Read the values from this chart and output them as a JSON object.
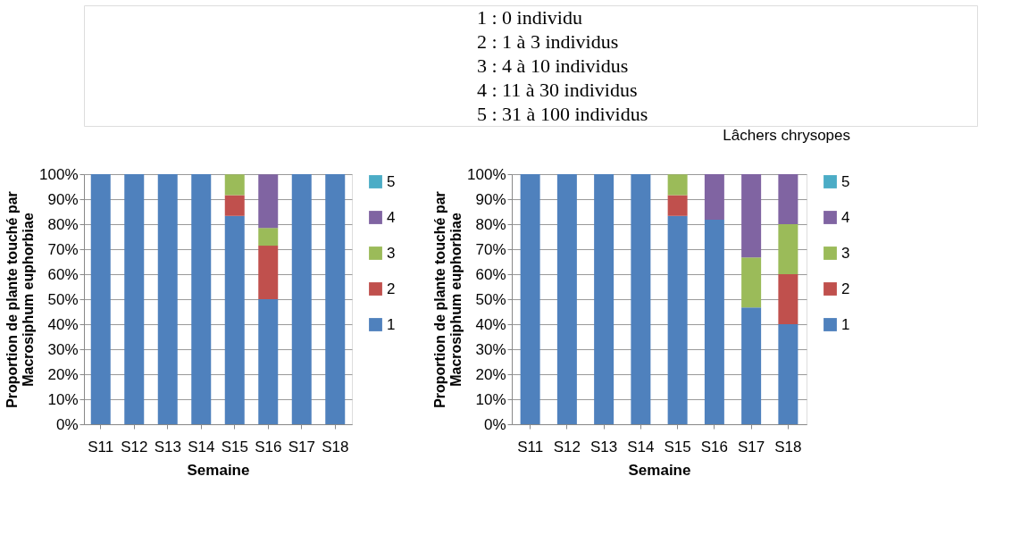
{
  "chart_data": [
    {
      "type": "other",
      "annotations": [
        "1 : 0 individu",
        "2 : 1 à 3 individus",
        "3 : 4 à 10 individus",
        "4 : 11 à 30 individus",
        "5 : 31 à 100 individus"
      ]
    },
    {
      "type": "bar",
      "stacked": true,
      "xlabel": "Semaine",
      "ylabel": "Proportion de plante touché par\nMacrosiphum euphorbiae",
      "categories": [
        "S11",
        "S12",
        "S13",
        "S14",
        "S15",
        "S16",
        "S17",
        "S18"
      ],
      "series": [
        {
          "name": "1",
          "color": "#4f81bd",
          "values": [
            100,
            100,
            100,
            100,
            83.3,
            50,
            100,
            100
          ]
        },
        {
          "name": "2",
          "color": "#c0504d",
          "values": [
            0,
            0,
            0,
            0,
            8.3,
            21.4,
            0,
            0
          ]
        },
        {
          "name": "3",
          "color": "#9bbb59",
          "values": [
            0,
            0,
            0,
            0,
            8.3,
            7.1,
            0,
            0
          ]
        },
        {
          "name": "4",
          "color": "#8064a2",
          "values": [
            0,
            0,
            0,
            0,
            0,
            21.4,
            0,
            0
          ]
        },
        {
          "name": "5",
          "color": "#4bacc6",
          "values": [
            0,
            0,
            0,
            0,
            0,
            0,
            0,
            0
          ]
        }
      ],
      "ylim": [
        0,
        100
      ],
      "yticks": [
        {
          "value": 0,
          "label": "0%"
        },
        {
          "value": 10,
          "label": "10%"
        },
        {
          "value": 20,
          "label": "20%"
        },
        {
          "value": 30,
          "label": "30%"
        },
        {
          "value": 40,
          "label": "40%"
        },
        {
          "value": 50,
          "label": "50%"
        },
        {
          "value": 60,
          "label": "60%"
        },
        {
          "value": 70,
          "label": "70%"
        },
        {
          "value": 80,
          "label": "80%"
        },
        {
          "value": 90,
          "label": "90%"
        },
        {
          "value": 100,
          "label": "100%"
        }
      ],
      "grid": "y",
      "legend": "right"
    },
    {
      "type": "bar",
      "stacked": true,
      "xlabel": "Semaine",
      "ylabel": "Proportion de plante touché par\nMacrosiphum euphorbiae",
      "annotations": [
        "Lâchers chrysopes"
      ],
      "categories": [
        "S11",
        "S12",
        "S13",
        "S14",
        "S15",
        "S16",
        "S17",
        "S18"
      ],
      "series": [
        {
          "name": "1",
          "color": "#4f81bd",
          "values": [
            100,
            100,
            100,
            100,
            83.3,
            81.8,
            46.7,
            40
          ]
        },
        {
          "name": "2",
          "color": "#c0504d",
          "values": [
            0,
            0,
            0,
            0,
            8.3,
            0,
            0,
            20
          ]
        },
        {
          "name": "3",
          "color": "#9bbb59",
          "values": [
            0,
            0,
            0,
            0,
            8.3,
            0,
            20,
            20
          ]
        },
        {
          "name": "4",
          "color": "#8064a2",
          "values": [
            0,
            0,
            0,
            0,
            0,
            18.2,
            33.3,
            20
          ]
        },
        {
          "name": "5",
          "color": "#4bacc6",
          "values": [
            0,
            0,
            0,
            0,
            0,
            0,
            0,
            0
          ]
        }
      ],
      "ylim": [
        0,
        100
      ],
      "yticks": [
        {
          "value": 0,
          "label": "0%"
        },
        {
          "value": 10,
          "label": "10%"
        },
        {
          "value": 20,
          "label": "20%"
        },
        {
          "value": 30,
          "label": "30%"
        },
        {
          "value": 40,
          "label": "40%"
        },
        {
          "value": 50,
          "label": "50%"
        },
        {
          "value": 60,
          "label": "60%"
        },
        {
          "value": 70,
          "label": "70%"
        },
        {
          "value": 80,
          "label": "80%"
        },
        {
          "value": 90,
          "label": "90%"
        },
        {
          "value": 100,
          "label": "100%"
        }
      ],
      "grid": "y",
      "legend": "right"
    }
  ]
}
